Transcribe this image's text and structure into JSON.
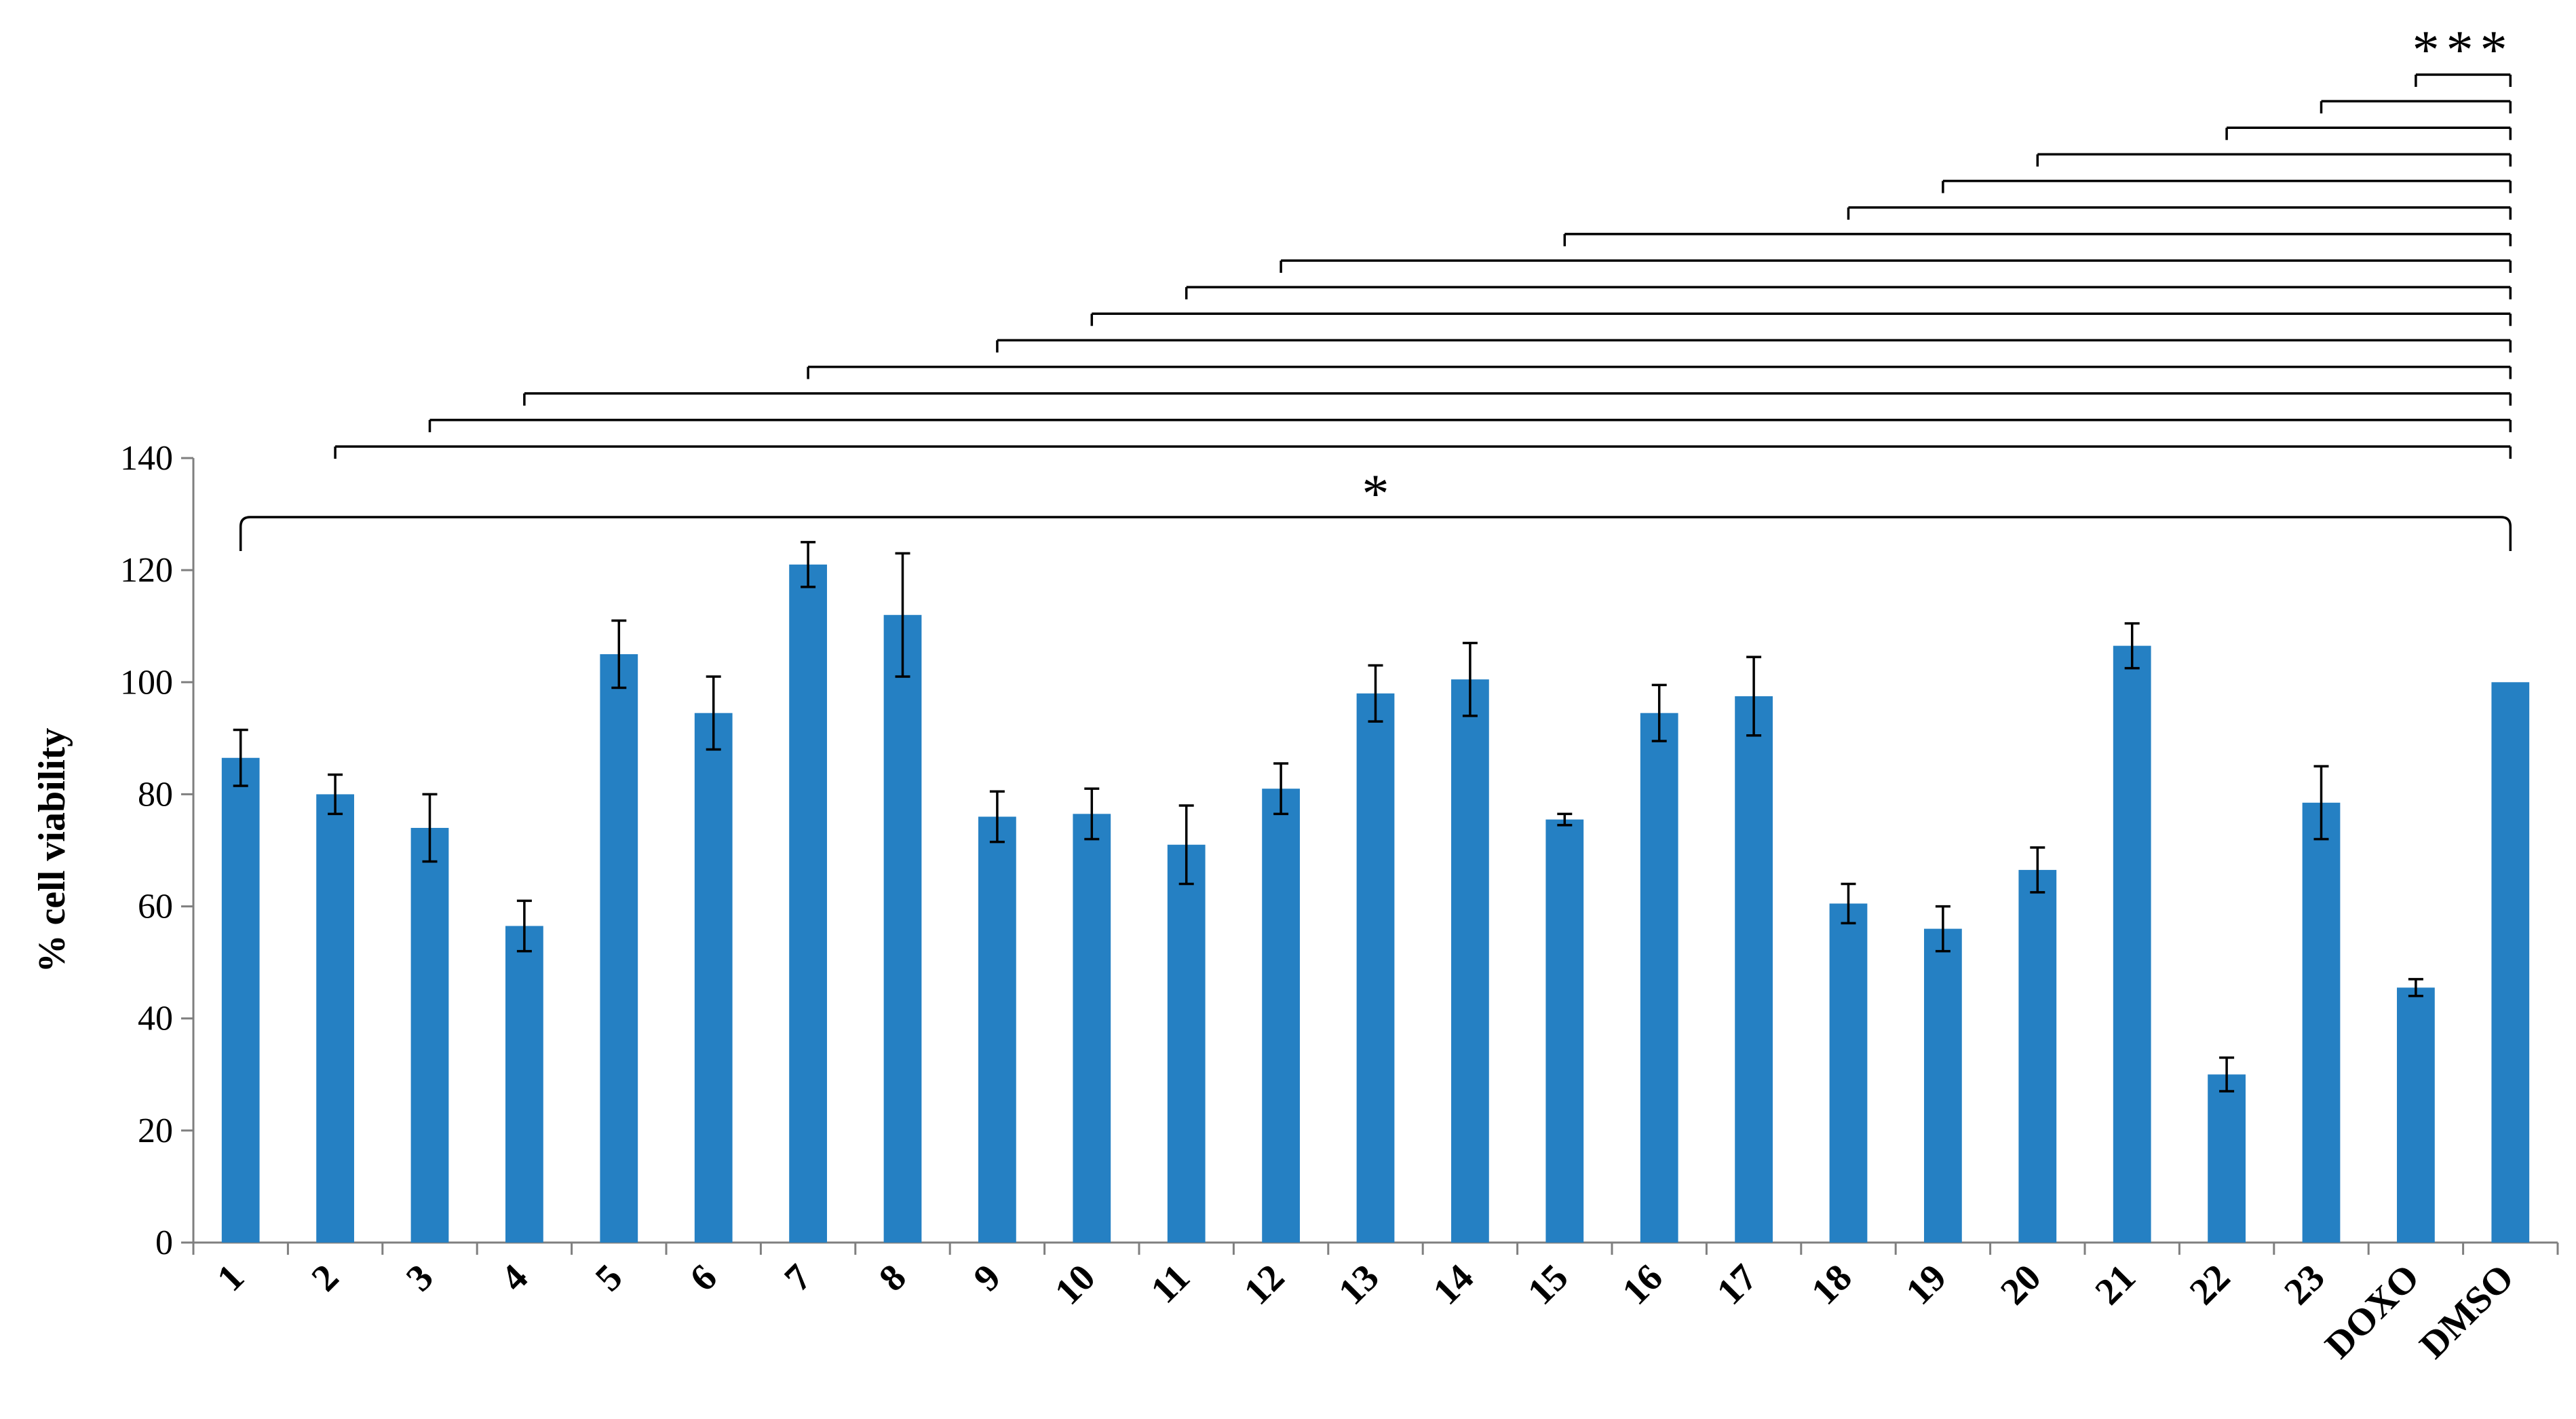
{
  "chart_data": {
    "type": "bar",
    "ylabel": "% cell viability",
    "xlabel": "",
    "ylim": [
      0,
      140
    ],
    "yticks": [
      0,
      20,
      40,
      60,
      80,
      100,
      120,
      140
    ],
    "grid": false,
    "legend": "none",
    "bar_color": "#2580C3",
    "categories": [
      "1",
      "2",
      "3",
      "4",
      "5",
      "6",
      "7",
      "8",
      "9",
      "10",
      "11",
      "12",
      "13",
      "14",
      "15",
      "16",
      "17",
      "18",
      "19",
      "20",
      "21",
      "22",
      "23",
      "DOXO",
      "DMSO"
    ],
    "values": [
      86.5,
      80,
      74,
      56.5,
      105,
      94.5,
      121,
      112,
      76,
      76.5,
      71,
      81,
      98,
      100.5,
      75.5,
      94.5,
      97.5,
      60.5,
      56,
      66.5,
      106.5,
      30,
      78.5,
      45.5,
      100
    ],
    "errors": [
      5,
      3.5,
      6,
      4.5,
      6,
      6.5,
      4,
      11,
      4.5,
      4.5,
      7,
      4.5,
      5,
      6.5,
      1,
      5,
      7,
      3.5,
      4,
      4,
      4,
      3,
      6.5,
      1.5,
      0
    ],
    "significance": {
      "single": {
        "label": "*",
        "from": "1",
        "to": "DMSO"
      },
      "triple": {
        "label": "***",
        "reference": "DMSO",
        "compared": [
          "2",
          "3",
          "4",
          "7",
          "9",
          "10",
          "11",
          "12",
          "15",
          "18",
          "19",
          "20",
          "22",
          "23",
          "DOXO"
        ]
      }
    }
  }
}
